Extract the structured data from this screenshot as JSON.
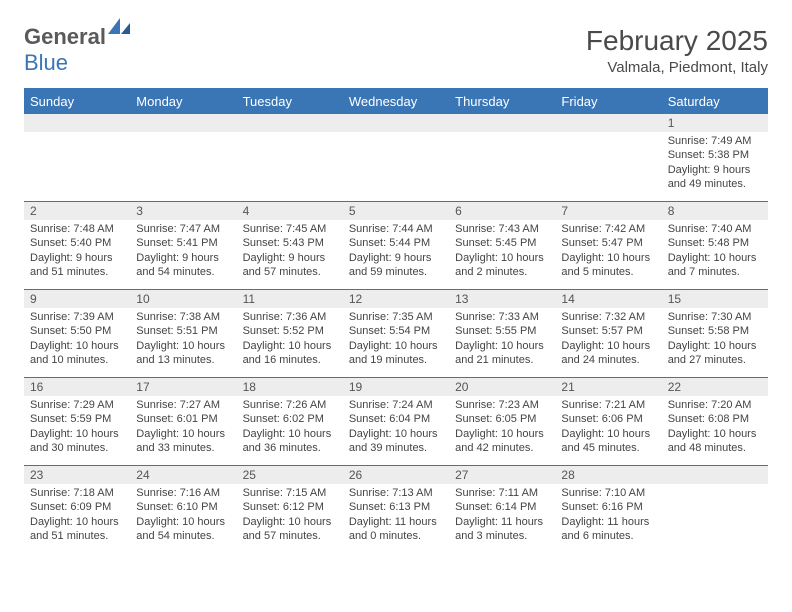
{
  "logo": {
    "text_general": "General",
    "text_blue": "Blue"
  },
  "title": "February 2025",
  "location": "Valmala, Piedmont, Italy",
  "colors": {
    "header_bg": "#3a76b6",
    "header_text": "#ffffff",
    "daynum_bg": "#ededed",
    "border": "#3a76b6",
    "body_text": "#444444"
  },
  "day_headers": [
    "Sunday",
    "Monday",
    "Tuesday",
    "Wednesday",
    "Thursday",
    "Friday",
    "Saturday"
  ],
  "weeks": [
    [
      {
        "n": "",
        "sr": "",
        "ss": "",
        "dl": ""
      },
      {
        "n": "",
        "sr": "",
        "ss": "",
        "dl": ""
      },
      {
        "n": "",
        "sr": "",
        "ss": "",
        "dl": ""
      },
      {
        "n": "",
        "sr": "",
        "ss": "",
        "dl": ""
      },
      {
        "n": "",
        "sr": "",
        "ss": "",
        "dl": ""
      },
      {
        "n": "",
        "sr": "",
        "ss": "",
        "dl": ""
      },
      {
        "n": "1",
        "sr": "Sunrise: 7:49 AM",
        "ss": "Sunset: 5:38 PM",
        "dl": "Daylight: 9 hours and 49 minutes."
      }
    ],
    [
      {
        "n": "2",
        "sr": "Sunrise: 7:48 AM",
        "ss": "Sunset: 5:40 PM",
        "dl": "Daylight: 9 hours and 51 minutes."
      },
      {
        "n": "3",
        "sr": "Sunrise: 7:47 AM",
        "ss": "Sunset: 5:41 PM",
        "dl": "Daylight: 9 hours and 54 minutes."
      },
      {
        "n": "4",
        "sr": "Sunrise: 7:45 AM",
        "ss": "Sunset: 5:43 PM",
        "dl": "Daylight: 9 hours and 57 minutes."
      },
      {
        "n": "5",
        "sr": "Sunrise: 7:44 AM",
        "ss": "Sunset: 5:44 PM",
        "dl": "Daylight: 9 hours and 59 minutes."
      },
      {
        "n": "6",
        "sr": "Sunrise: 7:43 AM",
        "ss": "Sunset: 5:45 PM",
        "dl": "Daylight: 10 hours and 2 minutes."
      },
      {
        "n": "7",
        "sr": "Sunrise: 7:42 AM",
        "ss": "Sunset: 5:47 PM",
        "dl": "Daylight: 10 hours and 5 minutes."
      },
      {
        "n": "8",
        "sr": "Sunrise: 7:40 AM",
        "ss": "Sunset: 5:48 PM",
        "dl": "Daylight: 10 hours and 7 minutes."
      }
    ],
    [
      {
        "n": "9",
        "sr": "Sunrise: 7:39 AM",
        "ss": "Sunset: 5:50 PM",
        "dl": "Daylight: 10 hours and 10 minutes."
      },
      {
        "n": "10",
        "sr": "Sunrise: 7:38 AM",
        "ss": "Sunset: 5:51 PM",
        "dl": "Daylight: 10 hours and 13 minutes."
      },
      {
        "n": "11",
        "sr": "Sunrise: 7:36 AM",
        "ss": "Sunset: 5:52 PM",
        "dl": "Daylight: 10 hours and 16 minutes."
      },
      {
        "n": "12",
        "sr": "Sunrise: 7:35 AM",
        "ss": "Sunset: 5:54 PM",
        "dl": "Daylight: 10 hours and 19 minutes."
      },
      {
        "n": "13",
        "sr": "Sunrise: 7:33 AM",
        "ss": "Sunset: 5:55 PM",
        "dl": "Daylight: 10 hours and 21 minutes."
      },
      {
        "n": "14",
        "sr": "Sunrise: 7:32 AM",
        "ss": "Sunset: 5:57 PM",
        "dl": "Daylight: 10 hours and 24 minutes."
      },
      {
        "n": "15",
        "sr": "Sunrise: 7:30 AM",
        "ss": "Sunset: 5:58 PM",
        "dl": "Daylight: 10 hours and 27 minutes."
      }
    ],
    [
      {
        "n": "16",
        "sr": "Sunrise: 7:29 AM",
        "ss": "Sunset: 5:59 PM",
        "dl": "Daylight: 10 hours and 30 minutes."
      },
      {
        "n": "17",
        "sr": "Sunrise: 7:27 AM",
        "ss": "Sunset: 6:01 PM",
        "dl": "Daylight: 10 hours and 33 minutes."
      },
      {
        "n": "18",
        "sr": "Sunrise: 7:26 AM",
        "ss": "Sunset: 6:02 PM",
        "dl": "Daylight: 10 hours and 36 minutes."
      },
      {
        "n": "19",
        "sr": "Sunrise: 7:24 AM",
        "ss": "Sunset: 6:04 PM",
        "dl": "Daylight: 10 hours and 39 minutes."
      },
      {
        "n": "20",
        "sr": "Sunrise: 7:23 AM",
        "ss": "Sunset: 6:05 PM",
        "dl": "Daylight: 10 hours and 42 minutes."
      },
      {
        "n": "21",
        "sr": "Sunrise: 7:21 AM",
        "ss": "Sunset: 6:06 PM",
        "dl": "Daylight: 10 hours and 45 minutes."
      },
      {
        "n": "22",
        "sr": "Sunrise: 7:20 AM",
        "ss": "Sunset: 6:08 PM",
        "dl": "Daylight: 10 hours and 48 minutes."
      }
    ],
    [
      {
        "n": "23",
        "sr": "Sunrise: 7:18 AM",
        "ss": "Sunset: 6:09 PM",
        "dl": "Daylight: 10 hours and 51 minutes."
      },
      {
        "n": "24",
        "sr": "Sunrise: 7:16 AM",
        "ss": "Sunset: 6:10 PM",
        "dl": "Daylight: 10 hours and 54 minutes."
      },
      {
        "n": "25",
        "sr": "Sunrise: 7:15 AM",
        "ss": "Sunset: 6:12 PM",
        "dl": "Daylight: 10 hours and 57 minutes."
      },
      {
        "n": "26",
        "sr": "Sunrise: 7:13 AM",
        "ss": "Sunset: 6:13 PM",
        "dl": "Daylight: 11 hours and 0 minutes."
      },
      {
        "n": "27",
        "sr": "Sunrise: 7:11 AM",
        "ss": "Sunset: 6:14 PM",
        "dl": "Daylight: 11 hours and 3 minutes."
      },
      {
        "n": "28",
        "sr": "Sunrise: 7:10 AM",
        "ss": "Sunset: 6:16 PM",
        "dl": "Daylight: 11 hours and 6 minutes."
      },
      {
        "n": "",
        "sr": "",
        "ss": "",
        "dl": ""
      }
    ]
  ]
}
